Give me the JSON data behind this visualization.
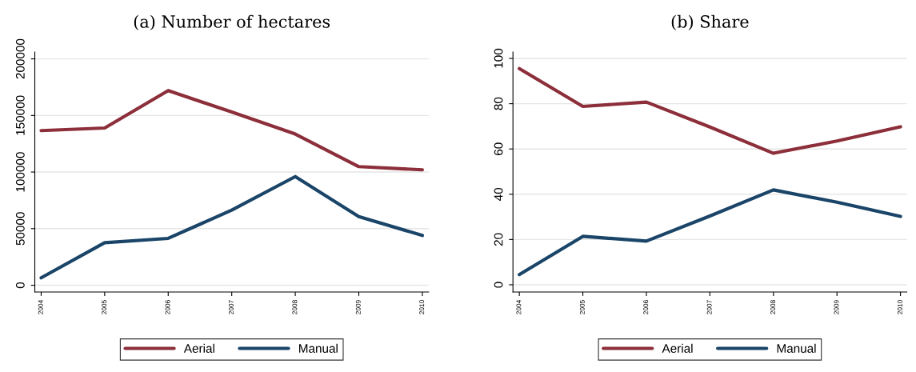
{
  "chart_data": [
    {
      "type": "line",
      "title": "(a) Number of hectares",
      "categories": [
        "2004",
        "2005",
        "2006",
        "2007",
        "2008",
        "2009",
        "2010"
      ],
      "series": [
        {
          "name": "Aerial",
          "color": "#8c2f3a",
          "values": [
            136600,
            138900,
            172000,
            153000,
            133600,
            104800,
            102000
          ]
        },
        {
          "name": "Manual",
          "color": "#1a4568",
          "values": [
            6600,
            37600,
            41400,
            66400,
            96000,
            60600,
            44000
          ]
        }
      ],
      "ylim": [
        -6000,
        206000
      ],
      "yticks": [
        0,
        50000,
        100000,
        150000,
        200000
      ],
      "grid": "y",
      "legend": "bottom",
      "marker": "none",
      "line_style": "solid"
    },
    {
      "type": "line",
      "title": "(b) Share",
      "categories": [
        "2004",
        "2005",
        "2006",
        "2007",
        "2008",
        "2009",
        "2010"
      ],
      "series": [
        {
          "name": "Aerial",
          "color": "#8c2f3a",
          "values": [
            95.5,
            78.8,
            80.7,
            69.7,
            58.1,
            63.5,
            69.8
          ]
        },
        {
          "name": "Manual",
          "color": "#1a4568",
          "values": [
            4.5,
            21.4,
            19.3,
            30.4,
            41.9,
            36.5,
            30.2
          ]
        }
      ],
      "ylim": [
        -3.2,
        102.8
      ],
      "yticks": [
        0,
        20,
        40,
        60,
        80,
        100
      ],
      "grid": "y",
      "legend": "bottom",
      "marker": "none",
      "line_style": "solid"
    }
  ]
}
